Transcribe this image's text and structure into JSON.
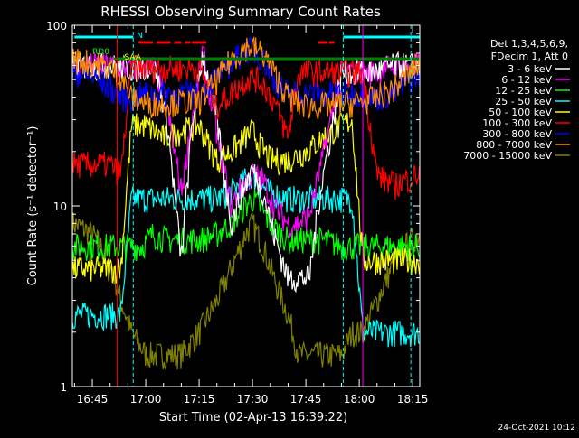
{
  "chart_data": {
    "type": "line",
    "title": "RHESSI Observing Summary Count Rates",
    "xlabel": "Start Time (02-Apr-13 16:39:22)",
    "ylabel": "Count Rate (s⁻¹ detector⁻¹)",
    "y_scale": "log",
    "ylim": [
      1,
      100
    ],
    "xlim_minutes": [
      39.4,
      137
    ],
    "x_ticks": [
      {
        "label": "16:45",
        "value": 45
      },
      {
        "label": "17:00",
        "value": 60
      },
      {
        "label": "17:15",
        "value": 75
      },
      {
        "label": "17:30",
        "value": 90
      },
      {
        "label": "17:45",
        "value": 105
      },
      {
        "label": "18:00",
        "value": 120
      },
      {
        "label": "18:15",
        "value": 135
      }
    ],
    "y_ticks": [
      {
        "label": "1",
        "value": 1
      },
      {
        "label": "10",
        "value": 10
      },
      {
        "label": "100",
        "value": 100
      }
    ],
    "legend_header": [
      "Det 1,3,4,5,6,9,",
      "FDecim 1, Att 0"
    ],
    "legend_placement": "right",
    "series": [
      {
        "name": "3 - 6 keV",
        "color": "#ffffff",
        "x": [
          40,
          50,
          53,
          56,
          58,
          60,
          63,
          66,
          70,
          73,
          76,
          80,
          84,
          87,
          90,
          93,
          96,
          100,
          103,
          106,
          109,
          112,
          115,
          118,
          121,
          124,
          127,
          130,
          133,
          137
        ],
        "y": [
          60,
          60,
          58,
          58,
          58,
          60,
          55,
          30,
          5,
          28,
          70,
          30,
          8,
          12,
          16,
          12,
          7,
          4,
          4,
          4,
          12,
          25,
          55,
          55,
          55,
          55,
          58,
          60,
          60,
          60
        ]
      },
      {
        "name": "6 - 12 keV",
        "color": "#ff00ff",
        "x": [
          40,
          50,
          53,
          56,
          58,
          60,
          63,
          66,
          70,
          73,
          76,
          80,
          84,
          87,
          90,
          93,
          96,
          100,
          103,
          106,
          109,
          112,
          115,
          118,
          121,
          124,
          127,
          130,
          133,
          137
        ],
        "y": [
          60,
          60,
          58,
          58,
          58,
          60,
          55,
          35,
          12,
          30,
          72,
          25,
          10,
          13,
          15,
          14,
          10,
          8,
          8,
          9,
          16,
          30,
          55,
          55,
          55,
          55,
          58,
          60,
          60,
          60
        ]
      },
      {
        "name": "12 - 25 keV",
        "color": "#00ff00",
        "x": [
          40,
          50,
          53,
          56,
          59,
          62,
          66,
          70,
          75,
          80,
          84,
          88,
          90,
          92,
          95,
          100,
          105,
          110,
          115,
          118,
          121,
          125,
          130,
          137
        ],
        "y": [
          6,
          6,
          6,
          6,
          6,
          7,
          6.5,
          6.5,
          6.5,
          7,
          8,
          10,
          11,
          10,
          8,
          6.5,
          6.5,
          6.5,
          6,
          6,
          6,
          6,
          6,
          6
        ]
      },
      {
        "name": "25 - 50 keV",
        "color": "#00ffff",
        "x": [
          40,
          50,
          53,
          56,
          60,
          65,
          70,
          75,
          80,
          84,
          88,
          90,
          92,
          95,
          100,
          105,
          110,
          115,
          118,
          121,
          125,
          130,
          137
        ],
        "y": [
          2.5,
          2.5,
          2.5,
          11,
          11,
          11,
          11,
          11,
          11,
          12,
          14,
          15,
          13,
          12,
          11,
          11,
          11,
          11,
          11,
          2,
          2,
          2,
          2
        ]
      },
      {
        "name": "50 - 100 keV",
        "color": "#ffff00",
        "x": [
          40,
          50,
          53,
          56,
          60,
          65,
          70,
          75,
          80,
          84,
          88,
          90,
          92,
          95,
          100,
          105,
          110,
          115,
          118,
          121,
          125,
          130,
          137
        ],
        "y": [
          4.5,
          4.5,
          4.5,
          28,
          28,
          24,
          26,
          28,
          18,
          20,
          24,
          26,
          22,
          18,
          18,
          20,
          24,
          28,
          30,
          5,
          5,
          5,
          5
        ]
      },
      {
        "name": "100 - 300 keV",
        "color": "#ff0000",
        "x": [
          40,
          46,
          50,
          53,
          56,
          60,
          65,
          70,
          75,
          80,
          84,
          88,
          90,
          93,
          96,
          100,
          103,
          106,
          110,
          115,
          118,
          121,
          125,
          130,
          133,
          137
        ],
        "y": [
          17,
          17,
          17,
          15,
          58,
          58,
          58,
          58,
          58,
          36,
          42,
          50,
          52,
          48,
          38,
          24,
          55,
          55,
          55,
          55,
          55,
          55,
          15,
          13,
          14,
          15
        ]
      },
      {
        "name": "300 - 800 keV",
        "color": "#0000ff",
        "x": [
          40,
          45,
          50,
          53,
          56,
          60,
          65,
          70,
          75,
          80,
          84,
          88,
          90,
          93,
          96,
          100,
          103,
          106,
          110,
          115,
          118,
          121,
          125,
          130,
          133,
          137
        ],
        "y": [
          55,
          52,
          45,
          40,
          40,
          42,
          42,
          42,
          42,
          52,
          62,
          74,
          73,
          65,
          50,
          42,
          42,
          42,
          42,
          42,
          42,
          42,
          40,
          42,
          48,
          55
        ]
      },
      {
        "name": "800 - 7000 keV",
        "color": "#ff8c00",
        "x": [
          40,
          45,
          50,
          53,
          56,
          60,
          65,
          70,
          75,
          80,
          84,
          88,
          90,
          93,
          96,
          100,
          103,
          106,
          110,
          115,
          118,
          121,
          125,
          130,
          133,
          137
        ],
        "y": [
          65,
          62,
          58,
          52,
          40,
          37,
          37,
          38,
          38,
          50,
          65,
          76,
          76,
          70,
          55,
          40,
          37,
          36,
          36,
          37,
          37,
          38,
          40,
          45,
          52,
          62
        ]
      },
      {
        "name": "7000 - 15000 keV",
        "color": "#808000",
        "x": [
          40,
          45,
          50,
          53,
          56,
          60,
          65,
          70,
          75,
          80,
          84,
          88,
          90,
          93,
          96,
          100,
          103,
          106,
          110,
          115,
          118,
          121,
          125,
          130,
          133,
          137
        ],
        "y": [
          8,
          7,
          5,
          3,
          2,
          1.5,
          1.5,
          1.5,
          2,
          3,
          4.5,
          7,
          8,
          6,
          4,
          2.5,
          1.5,
          1.5,
          1.5,
          1.5,
          2,
          2,
          3,
          5,
          6,
          7
        ]
      }
    ],
    "flag_bars": [
      {
        "label": "N",
        "color": "#00ffff"
      },
      {
        "label": "RD0",
        "color": "#00ff00"
      },
      {
        "label": "SAA",
        "color": "#ffff00"
      }
    ]
  },
  "timestamp": "24-Oct-2021 10:12"
}
